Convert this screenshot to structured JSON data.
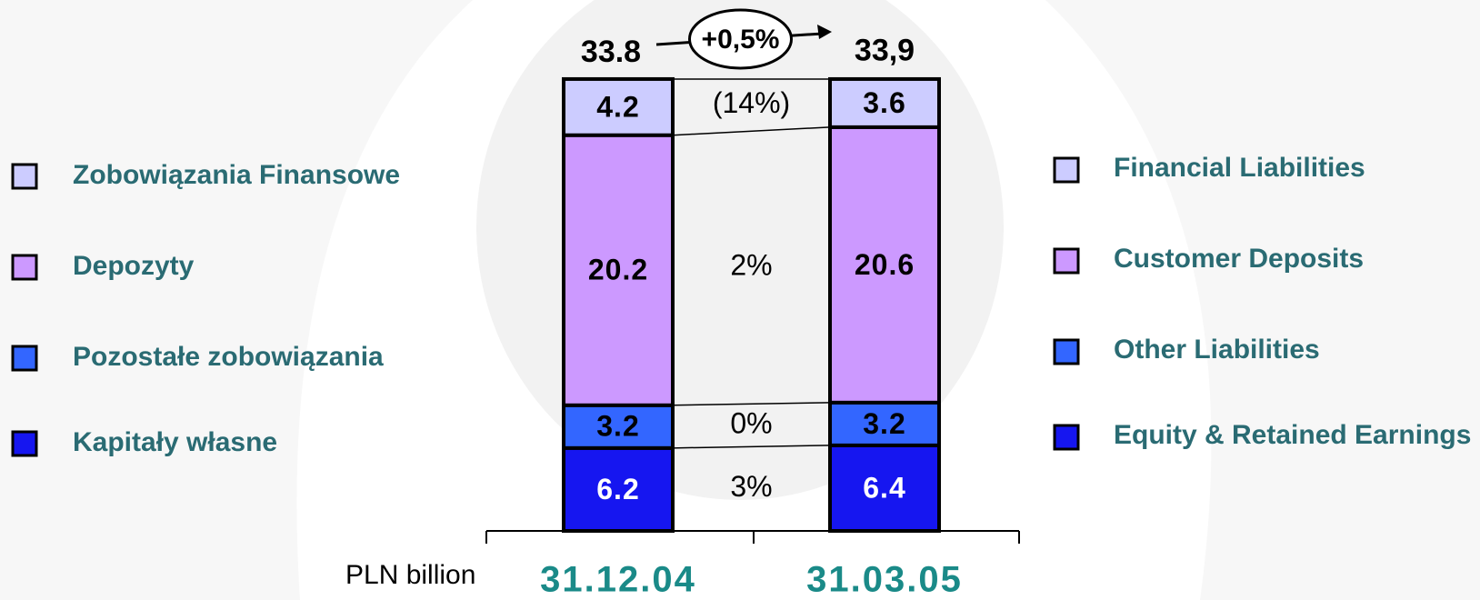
{
  "chart_data": {
    "type": "stacked_bar",
    "categories": [
      "31.12.04",
      "31.03.05"
    ],
    "series": [
      {
        "name": "Equity & Retained Earnings",
        "name_pl": "Kapitały własne",
        "color": "#1616f0",
        "label_color": "#ffffff",
        "values": [
          6.2,
          6.4
        ],
        "change_label": "3%"
      },
      {
        "name": "Other Liabilities",
        "name_pl": "Pozostałe zobowiązania",
        "color": "#3366ff",
        "label_color": "#000000",
        "values": [
          3.2,
          3.2
        ],
        "change_label": "0%"
      },
      {
        "name": "Customer Deposits",
        "name_pl": "Depozyty",
        "color": "#cc99ff",
        "label_color": "#000000",
        "values": [
          20.2,
          20.6
        ],
        "change_label": "2%"
      },
      {
        "name": "Financial Liabilities",
        "name_pl": "Zobowiązania Finansowe",
        "color": "#ccccff",
        "label_color": "#000000",
        "values": [
          4.2,
          3.6
        ],
        "change_label": "(14%)"
      }
    ],
    "totals": {
      "values": [
        33.8,
        33.9
      ],
      "value_labels": [
        "33.8",
        "33,9"
      ]
    },
    "total_change_label": "+0,5%",
    "unit_label": "PLN billion",
    "ylim": [
      0,
      34
    ]
  }
}
